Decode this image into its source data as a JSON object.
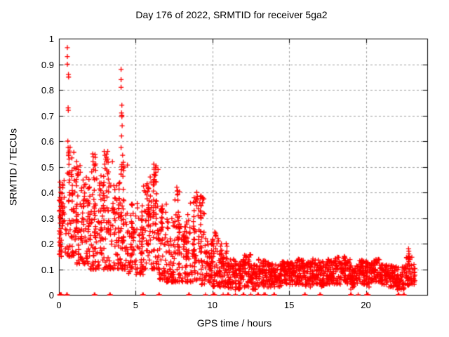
{
  "chart_data": {
    "type": "scatter",
    "title": "Day 176 of 2022, SRMTID for receiver 5ga2",
    "xlabel": "GPS time / hours",
    "ylabel": "SRMTID / TECUs",
    "xlim": [
      0,
      24
    ],
    "ylim": [
      0,
      1
    ],
    "xticks": [
      0,
      5,
      10,
      15,
      20
    ],
    "yticks": [
      0,
      0.1,
      0.2,
      0.3,
      0.4,
      0.5,
      0.6,
      0.7,
      0.8,
      0.9,
      1
    ],
    "grid": true,
    "legend": "none",
    "marker": {
      "shape": "plus",
      "color": "#ff0000",
      "size": 7
    },
    "grid_color": "#a0a0a0",
    "border_color": "#000000",
    "axis_text_color": "#000000",
    "seed": 176,
    "density_profile": [
      [
        0.0,
        0.5,
        0.15,
        0.45,
        50
      ],
      [
        0.5,
        1.0,
        0.15,
        0.58,
        60
      ],
      [
        1.0,
        1.5,
        0.12,
        0.52,
        60
      ],
      [
        1.5,
        2.0,
        0.12,
        0.46,
        60
      ],
      [
        2.0,
        2.5,
        0.1,
        0.55,
        60
      ],
      [
        2.5,
        3.0,
        0.1,
        0.48,
        55
      ],
      [
        3.0,
        3.5,
        0.1,
        0.56,
        55
      ],
      [
        3.5,
        4.0,
        0.1,
        0.44,
        55
      ],
      [
        4.0,
        4.5,
        0.1,
        0.52,
        55
      ],
      [
        4.5,
        5.0,
        0.08,
        0.36,
        50
      ],
      [
        5.0,
        5.5,
        0.08,
        0.36,
        50
      ],
      [
        5.5,
        6.0,
        0.1,
        0.44,
        55
      ],
      [
        6.0,
        6.5,
        0.1,
        0.51,
        60
      ],
      [
        6.5,
        7.0,
        0.06,
        0.36,
        55
      ],
      [
        7.0,
        7.5,
        0.05,
        0.3,
        55
      ],
      [
        7.5,
        8.0,
        0.05,
        0.42,
        55
      ],
      [
        8.0,
        8.5,
        0.05,
        0.32,
        55
      ],
      [
        8.5,
        9.0,
        0.05,
        0.38,
        55
      ],
      [
        9.0,
        9.5,
        0.04,
        0.4,
        55
      ],
      [
        9.5,
        10.0,
        0.04,
        0.22,
        50
      ],
      [
        10.0,
        10.5,
        0.03,
        0.25,
        50
      ],
      [
        10.5,
        11.0,
        0.03,
        0.2,
        50
      ],
      [
        11.0,
        11.5,
        0.02,
        0.15,
        48
      ],
      [
        11.5,
        12.0,
        0.02,
        0.13,
        48
      ],
      [
        12.0,
        12.5,
        0.03,
        0.16,
        48
      ],
      [
        12.5,
        13.0,
        0.02,
        0.12,
        48
      ],
      [
        13.0,
        13.5,
        0.03,
        0.14,
        48
      ],
      [
        13.5,
        14.0,
        0.03,
        0.13,
        48
      ],
      [
        14.0,
        14.5,
        0.03,
        0.12,
        48
      ],
      [
        14.5,
        15.0,
        0.04,
        0.13,
        48
      ],
      [
        15.0,
        15.5,
        0.04,
        0.13,
        48
      ],
      [
        15.5,
        16.0,
        0.04,
        0.14,
        48
      ],
      [
        16.0,
        16.5,
        0.03,
        0.13,
        48
      ],
      [
        16.5,
        17.0,
        0.04,
        0.14,
        48
      ],
      [
        17.0,
        17.5,
        0.03,
        0.13,
        48
      ],
      [
        17.5,
        18.0,
        0.04,
        0.14,
        48
      ],
      [
        18.0,
        18.5,
        0.04,
        0.15,
        48
      ],
      [
        18.5,
        19.0,
        0.04,
        0.15,
        48
      ],
      [
        19.0,
        19.5,
        0.02,
        0.12,
        45
      ],
      [
        19.5,
        20.0,
        0.04,
        0.14,
        48
      ],
      [
        20.0,
        20.5,
        0.03,
        0.13,
        48
      ],
      [
        20.5,
        21.0,
        0.05,
        0.14,
        48
      ],
      [
        21.0,
        21.5,
        0.04,
        0.12,
        48
      ],
      [
        21.5,
        22.0,
        0.03,
        0.12,
        48
      ],
      [
        22.0,
        22.5,
        0.02,
        0.11,
        45
      ],
      [
        22.5,
        23.0,
        0.03,
        0.15,
        45
      ],
      [
        23.0,
        23.2,
        0.04,
        0.12,
        14
      ]
    ],
    "spike_points": [
      [
        0.07,
        0.44
      ],
      [
        0.1,
        0.42
      ],
      [
        0.12,
        0.4
      ],
      [
        0.08,
        0.38
      ],
      [
        0.15,
        0.36
      ],
      [
        0.05,
        0.33
      ],
      [
        0.12,
        0.33
      ],
      [
        0.1,
        0.3
      ],
      [
        0.1,
        0.19
      ],
      [
        0.14,
        0.175
      ],
      [
        0.08,
        0.17
      ],
      [
        0.55,
        0.965
      ],
      [
        0.55,
        0.93
      ],
      [
        0.55,
        0.9
      ],
      [
        0.62,
        0.86
      ],
      [
        0.63,
        0.85
      ],
      [
        0.6,
        0.73
      ],
      [
        0.61,
        0.72
      ],
      [
        0.58,
        0.6
      ],
      [
        0.6,
        0.575
      ],
      [
        0.63,
        0.555
      ],
      [
        0.66,
        0.53
      ],
      [
        1.15,
        0.52
      ],
      [
        1.18,
        0.5
      ],
      [
        2.2,
        0.55
      ],
      [
        2.22,
        0.52
      ],
      [
        2.25,
        0.49
      ],
      [
        2.95,
        0.56
      ],
      [
        3.0,
        0.545
      ],
      [
        3.05,
        0.53
      ],
      [
        2.98,
        0.51
      ],
      [
        4.05,
        0.88
      ],
      [
        4.05,
        0.84
      ],
      [
        4.05,
        0.81
      ],
      [
        4.1,
        0.74
      ],
      [
        4.08,
        0.71
      ],
      [
        4.1,
        0.7
      ],
      [
        4.1,
        0.695
      ],
      [
        4.12,
        0.66
      ],
      [
        4.08,
        0.62
      ],
      [
        4.05,
        0.575
      ],
      [
        4.15,
        0.545
      ],
      [
        5.95,
        0.46
      ],
      [
        6.0,
        0.44
      ],
      [
        6.18,
        0.51
      ],
      [
        6.2,
        0.49
      ],
      [
        6.2,
        0.47
      ],
      [
        6.22,
        0.45
      ],
      [
        6.2,
        0.43
      ],
      [
        7.68,
        0.42
      ],
      [
        7.7,
        0.405
      ],
      [
        7.72,
        0.39
      ],
      [
        8.98,
        0.4
      ],
      [
        9.02,
        0.385
      ],
      [
        9.0,
        0.37
      ],
      [
        10.15,
        0.245
      ],
      [
        10.2,
        0.23
      ],
      [
        10.9,
        0.2
      ],
      [
        10.95,
        0.19
      ],
      [
        12.1,
        0.155
      ],
      [
        16.55,
        0.14
      ],
      [
        18.6,
        0.15
      ],
      [
        20.0,
        0.13
      ],
      [
        22.78,
        0.18
      ],
      [
        22.8,
        0.17
      ],
      [
        22.8,
        0.16
      ],
      [
        22.82,
        0.15
      ],
      [
        22.78,
        0.14
      ],
      [
        22.8,
        0.13
      ]
    ],
    "zero_points": [
      0.05,
      0.08,
      0.1,
      0.13,
      0.16,
      0.5,
      0.55,
      2.3,
      2.35,
      3.3,
      3.35,
      5.45,
      5.5,
      6.5,
      6.55,
      8.45,
      8.5,
      9.55,
      10.05,
      10.1,
      10.15,
      10.7,
      11.0,
      11.05,
      11.5,
      12.0,
      12.05,
      12.5,
      12.95,
      13.0,
      13.35,
      13.4,
      13.45,
      14.0,
      14.05,
      16.0,
      16.05,
      17.0,
      17.05,
      19.0,
      19.05,
      19.5,
      20.05,
      20.1,
      20.15,
      22.1,
      22.15,
      22.45,
      22.5
    ]
  }
}
